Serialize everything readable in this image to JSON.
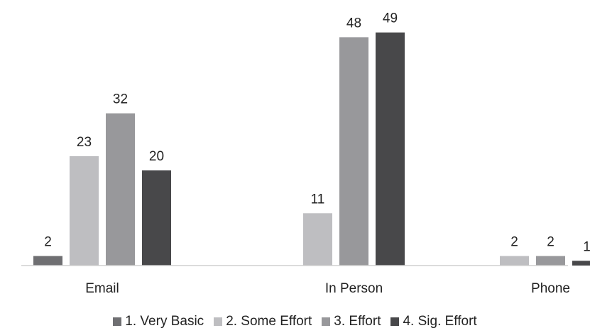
{
  "chart_data": {
    "type": "bar",
    "categories": [
      "Email",
      "In Person",
      "Phone"
    ],
    "series": [
      {
        "name": "1. Very Basic",
        "color": "#6f6f72",
        "values": [
          2,
          null,
          null
        ]
      },
      {
        "name": "2. Some Effort",
        "color": "#bebec1",
        "values": [
          23,
          11,
          2
        ]
      },
      {
        "name": "3. Effort",
        "color": "#98989b",
        "values": [
          32,
          48,
          2
        ]
      },
      {
        "name": "4. Sig. Effort",
        "color": "#48484a",
        "values": [
          20,
          49,
          1
        ]
      }
    ],
    "title": "",
    "xlabel": "",
    "ylabel": "",
    "ylim": [
      0,
      50
    ],
    "grid": false,
    "legend": "bottom",
    "data_labels": true
  }
}
